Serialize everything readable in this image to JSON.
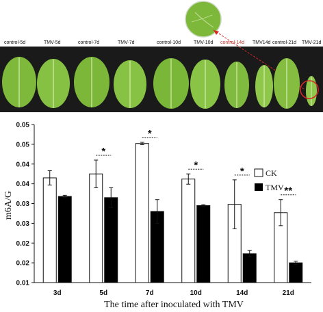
{
  "photo_panel": {
    "labels": [
      "control-5d",
      "TMV-5d",
      "control-7d",
      "TMV-7d",
      "control-10d",
      "TMV-10d",
      "control-14d",
      "TMV14d",
      "control-21d",
      "TMV-21d"
    ],
    "leaf_color": "#7db83a",
    "background": "#1a1a1a",
    "highlight_color": "#d62828"
  },
  "chart_data": {
    "type": "bar",
    "categories": [
      "3d",
      "5d",
      "7d",
      "10d",
      "14d",
      "21d"
    ],
    "series": [
      {
        "name": "CK",
        "values": [
          0.0365,
          0.0375,
          0.0452,
          0.0362,
          0.0298,
          0.0277
        ],
        "errors": [
          0.0018,
          0.0035,
          0.0003,
          0.0013,
          0.0062,
          0.0033
        ],
        "color": "#ffffff"
      },
      {
        "name": "TMV",
        "values": [
          0.0318,
          0.0315,
          0.028,
          0.0295,
          0.0173,
          0.015
        ],
        "errors": [
          0.0003,
          0.0025,
          0.003,
          0.0002,
          0.0008,
          0.0004
        ],
        "color": "#000000"
      }
    ],
    "significance": [
      "",
      "*",
      "*",
      "*",
      "*",
      "**"
    ],
    "yticks": [
      "0.01",
      "0.02",
      "0.02",
      "0.03",
      "0.03",
      "0.04",
      "0.04",
      "0.05",
      "0.05"
    ],
    "ylim": [
      0.01,
      0.05
    ],
    "ylabel": "m6A/G",
    "xlabel": "The time after inoculated  with TMV",
    "legend_position": "right"
  }
}
